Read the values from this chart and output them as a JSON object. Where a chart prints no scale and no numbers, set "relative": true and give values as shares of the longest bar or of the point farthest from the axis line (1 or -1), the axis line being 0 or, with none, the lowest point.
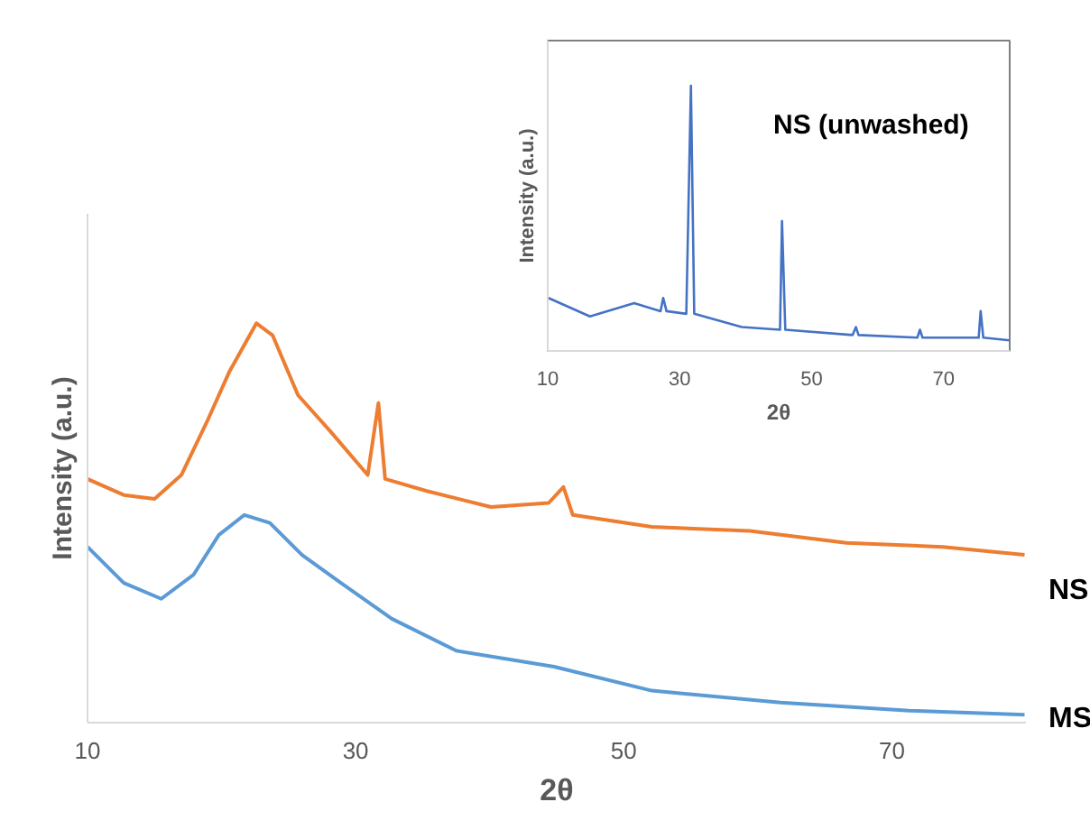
{
  "chart_data": [
    {
      "type": "line",
      "relative": true,
      "xlabel": "2θ",
      "ylabel": "Intensity (a.u.)",
      "xlim": [
        10,
        80
      ],
      "xticks": [
        10,
        30,
        50,
        70
      ],
      "series": [
        {
          "name": "NS",
          "color": "#ed7d31",
          "x": [
            10,
            12.7,
            15.0,
            17.0,
            19.0,
            20.6,
            22.6,
            23.8,
            25.7,
            28.1,
            30.9,
            31.7,
            32.2,
            35.3,
            40.1,
            44.4,
            45.5,
            46.2,
            52.1,
            59.4,
            66.6,
            73.8,
            79.9
          ],
          "values": [
            0.61,
            0.57,
            0.56,
            0.62,
            0.76,
            0.88,
            1.0,
            0.97,
            0.82,
            0.73,
            0.62,
            0.8,
            0.61,
            0.58,
            0.54,
            0.55,
            0.59,
            0.52,
            0.49,
            0.48,
            0.45,
            0.44,
            0.42
          ]
        },
        {
          "name": "MS",
          "color": "#5b9bd5",
          "x": [
            10,
            12.7,
            15.5,
            17.9,
            19.8,
            21.7,
            23.6,
            26.0,
            28.9,
            32.7,
            37.5,
            44.8,
            52.1,
            61.7,
            71.3,
            79.9
          ],
          "values": [
            0.44,
            0.35,
            0.31,
            0.37,
            0.47,
            0.52,
            0.5,
            0.42,
            0.35,
            0.26,
            0.18,
            0.14,
            0.08,
            0.05,
            0.03,
            0.02
          ]
        }
      ]
    },
    {
      "type": "line",
      "relative": true,
      "xlabel": "2θ",
      "ylabel": "Intensity (a.u.)",
      "xlim": [
        10,
        80
      ],
      "xticks": [
        10,
        30,
        50,
        70
      ],
      "series": [
        {
          "name": "NS (unwashed)",
          "color": "#4472c4",
          "x": [
            10.1,
            16.4,
            23.1,
            27.1,
            27.5,
            28.0,
            31.0,
            31.7,
            32.2,
            39.4,
            45.2,
            45.5,
            46.0,
            56.2,
            56.7,
            57.1,
            66.0,
            66.4,
            66.8,
            75.3,
            75.6,
            76.0,
            80
          ],
          "values": [
            0.2,
            0.13,
            0.18,
            0.15,
            0.2,
            0.15,
            0.14,
            1.0,
            0.14,
            0.09,
            0.08,
            0.49,
            0.08,
            0.06,
            0.09,
            0.06,
            0.05,
            0.08,
            0.05,
            0.05,
            0.15,
            0.05,
            0.04
          ]
        }
      ]
    }
  ]
}
